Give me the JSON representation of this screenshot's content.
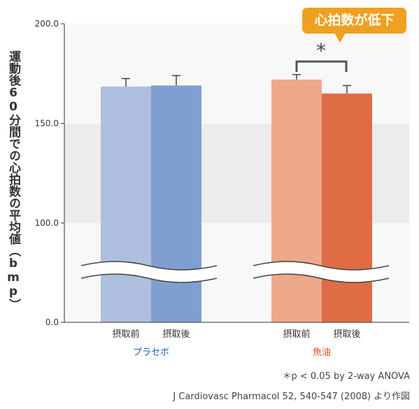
{
  "chart_data": {
    "type": "bar",
    "ylabel": "運動後60分間での心拍数の平均値（bmp）",
    "ylim": [
      0,
      200
    ],
    "axis_break": true,
    "yticks": [
      "0.0",
      "100.0",
      "150.0",
      "200.0"
    ],
    "groups": [
      {
        "name": "プラセボ",
        "name_color": "#1a5fb4",
        "bars": [
          {
            "category": "摂取前",
            "value": 168.5,
            "error": 4.0,
            "color": "#aebfdf"
          },
          {
            "category": "摂取後",
            "value": 169.0,
            "error": 5.0,
            "color": "#7f9fd1"
          }
        ]
      },
      {
        "name": "魚油",
        "name_color": "#e05020",
        "bars": [
          {
            "category": "摂取前",
            "value": 172.0,
            "error": 2.5,
            "color": "#eea88a"
          },
          {
            "category": "摂取後",
            "value": 165.0,
            "error": 4.0,
            "color": "#e06c45"
          }
        ]
      }
    ],
    "significance": {
      "mark": "*",
      "between": "魚油"
    },
    "callout": "心拍数が低下",
    "footnote1": "＊p < 0.05  by 2-way ANOVA",
    "footnote2": "J Cardiovasc Pharmacol 52, 540-547 (2008) より作図"
  }
}
